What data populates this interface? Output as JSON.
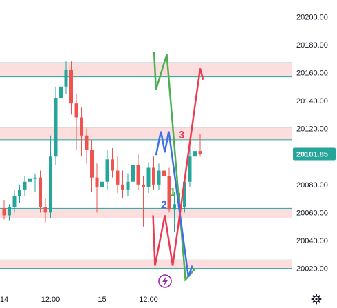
{
  "chart_data": {
    "type": "candlestick",
    "title": "",
    "xlabel": "",
    "ylabel": "",
    "ylim": [
      20005,
      20212
    ],
    "grid": false,
    "y_ticks": [
      20200,
      20180,
      20160,
      20140,
      20120,
      20100,
      20080,
      20060,
      20040,
      20020
    ],
    "y_tick_labels": [
      "20200.00",
      "20180.00",
      "20160.00",
      "20140.00",
      "20120.00",
      "20100.00",
      "20080.00",
      "20060.00",
      "20040.00",
      "20020.00"
    ],
    "x_tick_labels": [
      {
        "label": "14",
        "slot": 0
      },
      {
        "label": "12:00",
        "slot": 9
      },
      {
        "label": "15",
        "slot": 19
      },
      {
        "label": "12:00",
        "slot": 28
      }
    ],
    "current_price": {
      "value": 20101.85,
      "label": "20101.85",
      "color": "#26a69a"
    },
    "zones": [
      {
        "low": 20157,
        "high": 20167
      },
      {
        "low": 20112,
        "high": 20121
      },
      {
        "low": 20056,
        "high": 20063
      },
      {
        "low": 20020,
        "high": 20026
      }
    ],
    "candles": [
      {
        "o": 20063,
        "h": 20069,
        "l": 20055,
        "c": 20058
      },
      {
        "o": 20058,
        "h": 20066,
        "l": 20054,
        "c": 20064
      },
      {
        "o": 20064,
        "h": 20076,
        "l": 20060,
        "c": 20072
      },
      {
        "o": 20072,
        "h": 20080,
        "l": 20067,
        "c": 20076
      },
      {
        "o": 20076,
        "h": 20086,
        "l": 20072,
        "c": 20082
      },
      {
        "o": 20082,
        "h": 20090,
        "l": 20078,
        "c": 20084
      },
      {
        "o": 20084,
        "h": 20088,
        "l": 20075,
        "c": 20085
      },
      {
        "o": 20085,
        "h": 20090,
        "l": 20060,
        "c": 20064
      },
      {
        "o": 20064,
        "h": 20070,
        "l": 20053,
        "c": 20060
      },
      {
        "o": 20060,
        "h": 20115,
        "l": 20056,
        "c": 20100
      },
      {
        "o": 20100,
        "h": 20150,
        "l": 20094,
        "c": 20142
      },
      {
        "o": 20142,
        "h": 20158,
        "l": 20137,
        "c": 20150
      },
      {
        "o": 20150,
        "h": 20168,
        "l": 20145,
        "c": 20162
      },
      {
        "o": 20162,
        "h": 20168,
        "l": 20130,
        "c": 20138
      },
      {
        "o": 20138,
        "h": 20145,
        "l": 20105,
        "c": 20128
      },
      {
        "o": 20128,
        "h": 20135,
        "l": 20100,
        "c": 20115
      },
      {
        "o": 20115,
        "h": 20120,
        "l": 20095,
        "c": 20105
      },
      {
        "o": 20105,
        "h": 20112,
        "l": 20075,
        "c": 20085
      },
      {
        "o": 20085,
        "h": 20095,
        "l": 20060,
        "c": 20078
      },
      {
        "o": 20078,
        "h": 20088,
        "l": 20060,
        "c": 20082
      },
      {
        "o": 20082,
        "h": 20105,
        "l": 20076,
        "c": 20098
      },
      {
        "o": 20098,
        "h": 20106,
        "l": 20085,
        "c": 20090
      },
      {
        "o": 20090,
        "h": 20100,
        "l": 20074,
        "c": 20080
      },
      {
        "o": 20080,
        "h": 20090,
        "l": 20070,
        "c": 20076
      },
      {
        "o": 20076,
        "h": 20088,
        "l": 20072,
        "c": 20082
      },
      {
        "o": 20082,
        "h": 20100,
        "l": 20078,
        "c": 20094
      },
      {
        "o": 20094,
        "h": 20102,
        "l": 20076,
        "c": 20080
      },
      {
        "o": 20080,
        "h": 20086,
        "l": 20050,
        "c": 20078
      },
      {
        "o": 20078,
        "h": 20096,
        "l": 20074,
        "c": 20092
      },
      {
        "o": 20092,
        "h": 20100,
        "l": 20076,
        "c": 20080
      },
      {
        "o": 20080,
        "h": 20095,
        "l": 20076,
        "c": 20090
      },
      {
        "o": 20090,
        "h": 20098,
        "l": 20080,
        "c": 20086
      },
      {
        "o": 20086,
        "h": 20092,
        "l": 20060,
        "c": 20062
      },
      {
        "o": 20062,
        "h": 20075,
        "l": 20046,
        "c": 20066
      },
      {
        "o": 20066,
        "h": 20074,
        "l": 20058,
        "c": 20064
      },
      {
        "o": 20064,
        "h": 20085,
        "l": 20060,
        "c": 20082
      },
      {
        "o": 20082,
        "h": 20110,
        "l": 20078,
        "c": 20100
      },
      {
        "o": 20100,
        "h": 20114,
        "l": 20095,
        "c": 20104
      },
      {
        "o": 20104,
        "h": 20116,
        "l": 20100,
        "c": 20102
      }
    ],
    "colors": {
      "up": "#26a69a",
      "down": "#ef5350",
      "zone_fill": "#fcdede",
      "zone_line": "#26a69a",
      "text": "#131722"
    },
    "projections": [
      {
        "label": "1",
        "color": "#4caf50",
        "points": [
          [
            20153,
            20175
          ],
          [
            20155,
            20148
          ],
          [
            20166,
            20173
          ],
          [
            20185,
            20012
          ],
          [
            20195,
            20020
          ]
        ]
      },
      {
        "label": "2",
        "color": "#3d6fe6",
        "points": [
          [
            20155,
            20101
          ],
          [
            20160,
            20118
          ],
          [
            20164,
            20103
          ],
          [
            20168,
            20118
          ],
          [
            20188,
            20014
          ],
          [
            20192,
            20022
          ]
        ]
      },
      {
        "label": "3",
        "color": "#f0394f",
        "points": [
          [
            20152,
            20058
          ],
          [
            20154,
            20022
          ],
          [
            20164,
            20058
          ],
          [
            20172,
            20022
          ],
          [
            20200,
            20163
          ],
          [
            20203,
            20155
          ]
        ]
      }
    ],
    "label_positions": [
      {
        "label": "1",
        "x": 20172,
        "y": 20072
      },
      {
        "label": "2",
        "x": 20163,
        "y": 20063
      },
      {
        "label": "3",
        "x": 20181,
        "y": 20113
      }
    ]
  }
}
